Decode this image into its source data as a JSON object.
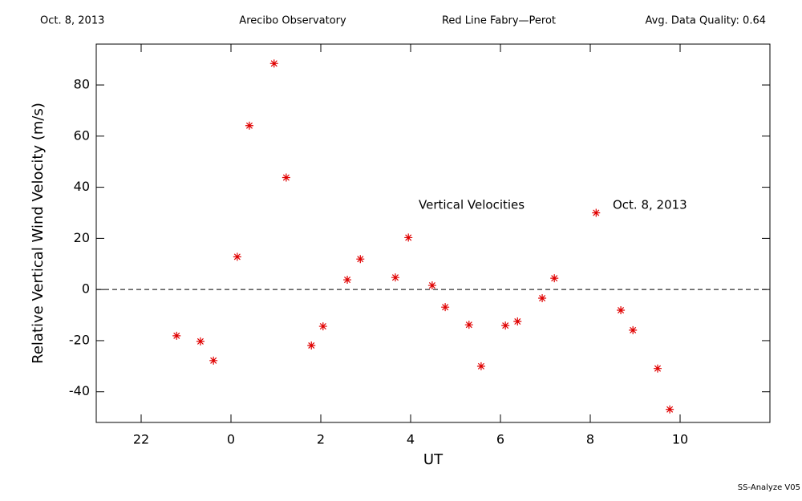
{
  "header": {
    "date": "Oct. 8, 2013",
    "observatory": "Arecibo Observatory",
    "instrument": "Red Line Fabry—Perot",
    "quality": "Avg. Data Quality: 0.64"
  },
  "footer": "SS-Analyze V05",
  "chart_data": {
    "type": "scatter",
    "xlabel": "UT",
    "ylabel": "Relative Vertical Wind Velocity (m/s)",
    "annotations": [
      "Vertical Velocities",
      "Oct. 8, 2013"
    ],
    "xlim": [
      -3,
      12
    ],
    "ylim": [
      -52,
      96
    ],
    "xticks": [
      {
        "value": -2,
        "label": "22"
      },
      0,
      2,
      4,
      6,
      8,
      10
    ],
    "yticks": [
      -40,
      -20,
      0,
      20,
      40,
      60,
      80
    ],
    "reference_line": 0,
    "series": [
      {
        "color": "#e00000",
        "x": [
          -1.21,
          -0.68,
          -0.39,
          0.14,
          0.41,
          0.96,
          1.23,
          1.79,
          2.05,
          2.59,
          2.88,
          3.66,
          3.95,
          4.48,
          4.77,
          5.3,
          5.57,
          6.11,
          6.38,
          6.93,
          7.2,
          8.13,
          8.68,
          8.95,
          9.5,
          9.77
        ],
        "values": [
          -18.1,
          -20.3,
          -27.8,
          12.8,
          64.1,
          88.4,
          43.8,
          -21.9,
          -14.4,
          3.8,
          11.9,
          4.7,
          20.3,
          1.6,
          -6.9,
          -13.8,
          -30.0,
          -14.1,
          -12.5,
          -3.4,
          4.4,
          30.0,
          -8.1,
          -15.9,
          -30.9,
          -46.9
        ]
      }
    ]
  }
}
